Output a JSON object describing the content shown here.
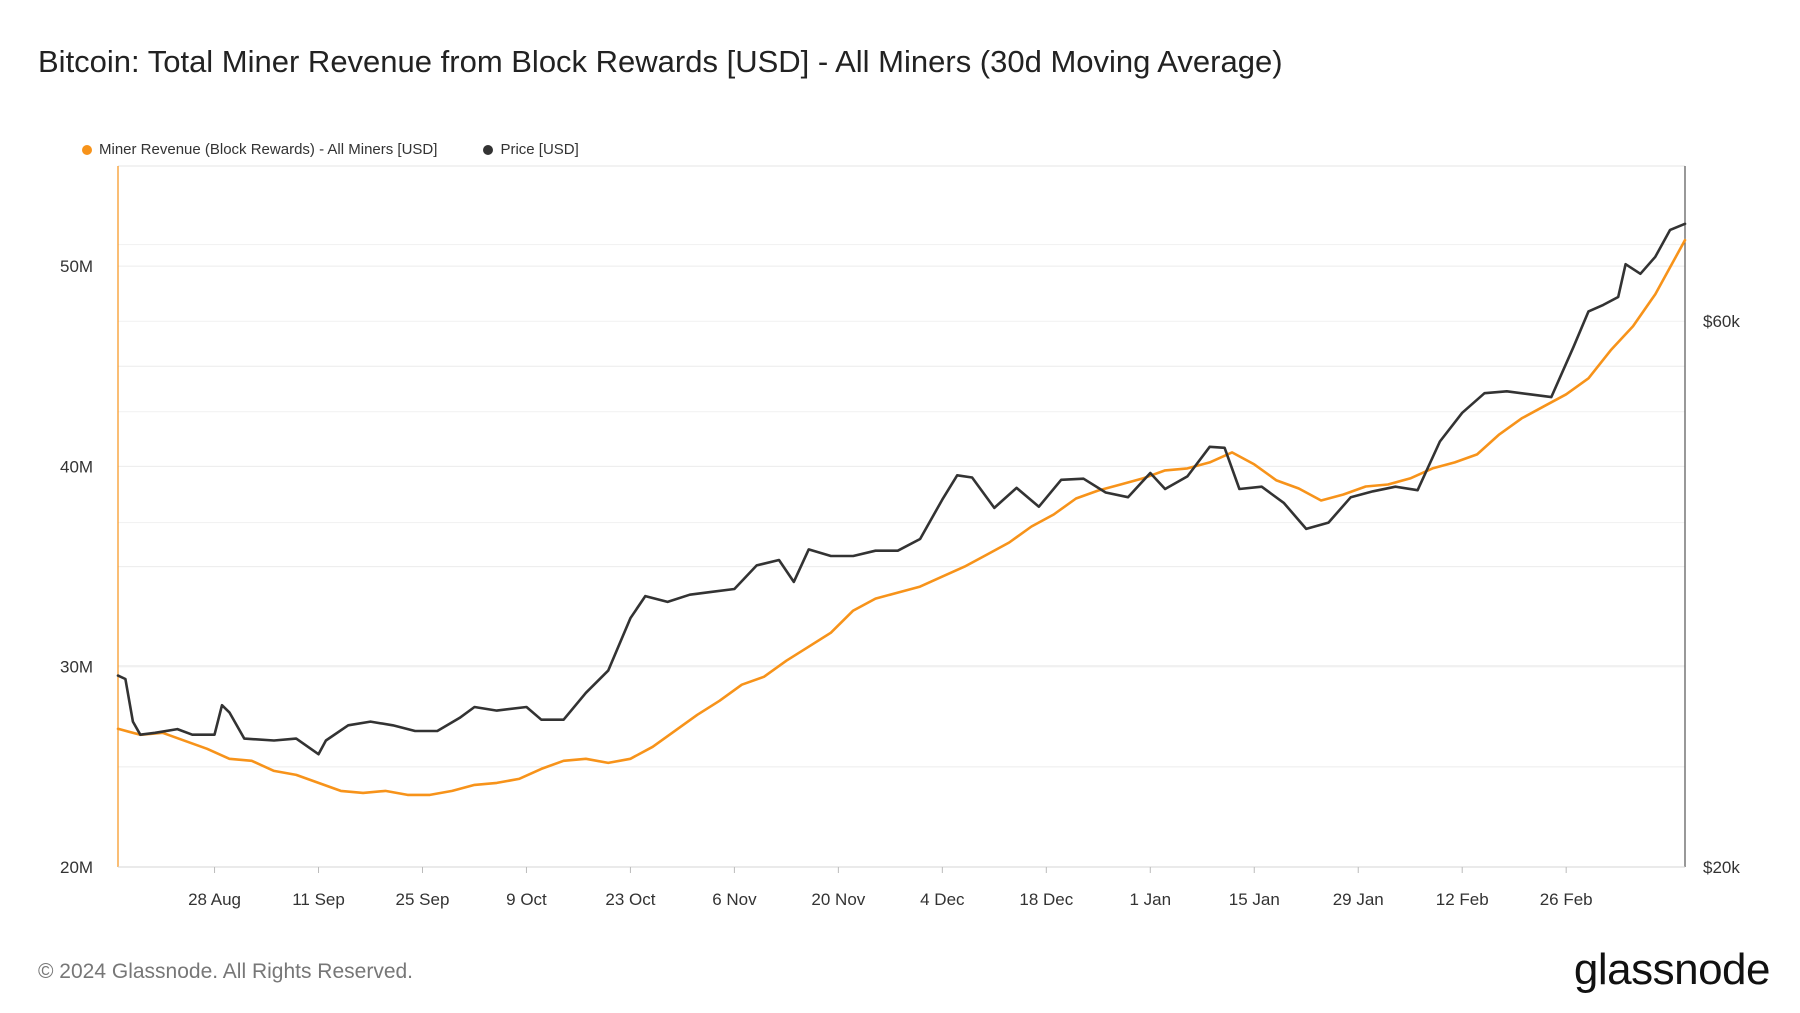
{
  "title": "Bitcoin: Total Miner Revenue from Block Rewards [USD] - All Miners (30d Moving Average)",
  "footer": "© 2024 Glassnode. All Rights Reserved.",
  "brand": "glassnode",
  "chart_data": {
    "type": "line",
    "x_range": [
      "2023-08-15",
      "2024-03-13"
    ],
    "x_ticks": [
      "28 Aug",
      "11 Sep",
      "25 Sep",
      "9 Oct",
      "23 Oct",
      "6 Nov",
      "20 Nov",
      "4 Dec",
      "18 Dec",
      "1 Jan",
      "15 Jan",
      "29 Jan",
      "12 Feb",
      "26 Feb"
    ],
    "x_tick_dates": [
      "2023-08-28",
      "2023-09-11",
      "2023-09-25",
      "2023-10-09",
      "2023-10-23",
      "2023-11-06",
      "2023-11-20",
      "2023-12-04",
      "2023-12-18",
      "2024-01-01",
      "2024-01-15",
      "2024-01-29",
      "2024-02-12",
      "2024-02-26"
    ],
    "y_left": {
      "min": 20000000,
      "max": 55000000,
      "ticks": [
        20000000,
        30000000,
        40000000,
        50000000
      ],
      "tick_labels": [
        "20M",
        "30M",
        "40M",
        "50M"
      ]
    },
    "y_right": {
      "scale": "log",
      "min": 20000,
      "max": 82000,
      "ticks": [
        20000,
        60000
      ],
      "tick_labels": [
        "$20k",
        "$60k"
      ]
    },
    "grid": true,
    "legend_position": "top-left",
    "series": [
      {
        "name": "Miner Revenue (Block Rewards) - All Miners [USD]",
        "color": "#f7931a",
        "axis": "left",
        "points": [
          [
            "2023-08-15",
            26.9
          ],
          [
            "2023-08-18",
            26.6
          ],
          [
            "2023-08-21",
            26.7
          ],
          [
            "2023-08-24",
            26.3
          ],
          [
            "2023-08-27",
            25.9
          ],
          [
            "2023-08-30",
            25.4
          ],
          [
            "2023-09-02",
            25.3
          ],
          [
            "2023-09-05",
            24.8
          ],
          [
            "2023-09-08",
            24.6
          ],
          [
            "2023-09-11",
            24.2
          ],
          [
            "2023-09-14",
            23.8
          ],
          [
            "2023-09-17",
            23.7
          ],
          [
            "2023-09-20",
            23.8
          ],
          [
            "2023-09-23",
            23.6
          ],
          [
            "2023-09-26",
            23.6
          ],
          [
            "2023-09-29",
            23.8
          ],
          [
            "2023-10-02",
            24.1
          ],
          [
            "2023-10-05",
            24.2
          ],
          [
            "2023-10-08",
            24.4
          ],
          [
            "2023-10-11",
            24.9
          ],
          [
            "2023-10-14",
            25.3
          ],
          [
            "2023-10-17",
            25.4
          ],
          [
            "2023-10-20",
            25.2
          ],
          [
            "2023-10-23",
            25.4
          ],
          [
            "2023-10-26",
            26.0
          ],
          [
            "2023-10-29",
            26.8
          ],
          [
            "2023-11-01",
            27.6
          ],
          [
            "2023-11-04",
            28.3
          ],
          [
            "2023-11-07",
            29.1
          ],
          [
            "2023-11-10",
            29.5
          ],
          [
            "2023-11-13",
            30.3
          ],
          [
            "2023-11-16",
            31.0
          ],
          [
            "2023-11-19",
            31.7
          ],
          [
            "2023-11-22",
            32.8
          ],
          [
            "2023-11-25",
            33.4
          ],
          [
            "2023-11-28",
            33.7
          ],
          [
            "2023-12-01",
            34.0
          ],
          [
            "2023-12-04",
            34.5
          ],
          [
            "2023-12-07",
            35.0
          ],
          [
            "2023-12-10",
            35.6
          ],
          [
            "2023-12-13",
            36.2
          ],
          [
            "2023-12-16",
            37.0
          ],
          [
            "2023-12-19",
            37.6
          ],
          [
            "2023-12-22",
            38.4
          ],
          [
            "2023-12-25",
            38.8
          ],
          [
            "2023-12-28",
            39.1
          ],
          [
            "2023-12-31",
            39.4
          ],
          [
            "2024-01-03",
            39.8
          ],
          [
            "2024-01-06",
            39.9
          ],
          [
            "2024-01-09",
            40.2
          ],
          [
            "2024-01-12",
            40.7
          ],
          [
            "2024-01-15",
            40.1
          ],
          [
            "2024-01-18",
            39.3
          ],
          [
            "2024-01-21",
            38.9
          ],
          [
            "2024-01-24",
            38.3
          ],
          [
            "2024-01-27",
            38.6
          ],
          [
            "2024-01-30",
            39.0
          ],
          [
            "2024-02-02",
            39.1
          ],
          [
            "2024-02-05",
            39.4
          ],
          [
            "2024-02-08",
            39.9
          ],
          [
            "2024-02-11",
            40.2
          ],
          [
            "2024-02-14",
            40.6
          ],
          [
            "2024-02-17",
            41.6
          ],
          [
            "2024-02-20",
            42.4
          ],
          [
            "2024-02-23",
            43.0
          ],
          [
            "2024-02-26",
            43.6
          ],
          [
            "2024-02-29",
            44.4
          ],
          [
            "2024-03-03",
            45.8
          ],
          [
            "2024-03-06",
            47.0
          ],
          [
            "2024-03-09",
            48.6
          ],
          [
            "2024-03-13",
            51.3
          ]
        ]
      },
      {
        "name": "Price [USD]",
        "color": "#333333",
        "axis": "right",
        "points": [
          [
            "2023-08-15",
            29400
          ],
          [
            "2023-08-16",
            29200
          ],
          [
            "2023-08-17",
            26800
          ],
          [
            "2023-08-18",
            26100
          ],
          [
            "2023-08-20",
            26200
          ],
          [
            "2023-08-23",
            26400
          ],
          [
            "2023-08-25",
            26100
          ],
          [
            "2023-08-28",
            26100
          ],
          [
            "2023-08-29",
            27700
          ],
          [
            "2023-08-30",
            27300
          ],
          [
            "2023-09-01",
            25900
          ],
          [
            "2023-09-05",
            25800
          ],
          [
            "2023-09-08",
            25900
          ],
          [
            "2023-09-11",
            25100
          ],
          [
            "2023-09-12",
            25800
          ],
          [
            "2023-09-15",
            26600
          ],
          [
            "2023-09-18",
            26800
          ],
          [
            "2023-09-21",
            26600
          ],
          [
            "2023-09-24",
            26300
          ],
          [
            "2023-09-27",
            26300
          ],
          [
            "2023-09-30",
            27000
          ],
          [
            "2023-10-02",
            27600
          ],
          [
            "2023-10-05",
            27400
          ],
          [
            "2023-10-09",
            27600
          ],
          [
            "2023-10-11",
            26900
          ],
          [
            "2023-10-14",
            26900
          ],
          [
            "2023-10-17",
            28400
          ],
          [
            "2023-10-20",
            29700
          ],
          [
            "2023-10-23",
            33000
          ],
          [
            "2023-10-25",
            34500
          ],
          [
            "2023-10-28",
            34100
          ],
          [
            "2023-10-31",
            34600
          ],
          [
            "2023-11-03",
            34800
          ],
          [
            "2023-11-06",
            35000
          ],
          [
            "2023-11-09",
            36700
          ],
          [
            "2023-11-12",
            37100
          ],
          [
            "2023-11-14",
            35500
          ],
          [
            "2023-11-16",
            37900
          ],
          [
            "2023-11-19",
            37400
          ],
          [
            "2023-11-22",
            37400
          ],
          [
            "2023-11-25",
            37800
          ],
          [
            "2023-11-28",
            37800
          ],
          [
            "2023-12-01",
            38700
          ],
          [
            "2023-12-04",
            41900
          ],
          [
            "2023-12-06",
            44000
          ],
          [
            "2023-12-08",
            43800
          ],
          [
            "2023-12-11",
            41200
          ],
          [
            "2023-12-14",
            42900
          ],
          [
            "2023-12-17",
            41300
          ],
          [
            "2023-12-20",
            43600
          ],
          [
            "2023-12-23",
            43700
          ],
          [
            "2023-12-26",
            42500
          ],
          [
            "2023-12-29",
            42100
          ],
          [
            "2024-01-01",
            44200
          ],
          [
            "2024-01-03",
            42800
          ],
          [
            "2024-01-06",
            43900
          ],
          [
            "2024-01-09",
            46600
          ],
          [
            "2024-01-11",
            46500
          ],
          [
            "2024-01-13",
            42800
          ],
          [
            "2024-01-16",
            43000
          ],
          [
            "2024-01-19",
            41600
          ],
          [
            "2024-01-22",
            39500
          ],
          [
            "2024-01-25",
            40000
          ],
          [
            "2024-01-28",
            42100
          ],
          [
            "2024-01-31",
            42600
          ],
          [
            "2024-02-03",
            43000
          ],
          [
            "2024-02-06",
            42700
          ],
          [
            "2024-02-09",
            47100
          ],
          [
            "2024-02-12",
            49900
          ],
          [
            "2024-02-15",
            51900
          ],
          [
            "2024-02-18",
            52100
          ],
          [
            "2024-02-21",
            51800
          ],
          [
            "2024-02-24",
            51500
          ],
          [
            "2024-02-27",
            57000
          ],
          [
            "2024-02-29",
            61200
          ],
          [
            "2024-03-02",
            62000
          ],
          [
            "2024-03-04",
            63000
          ],
          [
            "2024-03-05",
            67300
          ],
          [
            "2024-03-07",
            66000
          ],
          [
            "2024-03-09",
            68300
          ],
          [
            "2024-03-11",
            72100
          ],
          [
            "2024-03-13",
            73000
          ]
        ]
      }
    ]
  }
}
